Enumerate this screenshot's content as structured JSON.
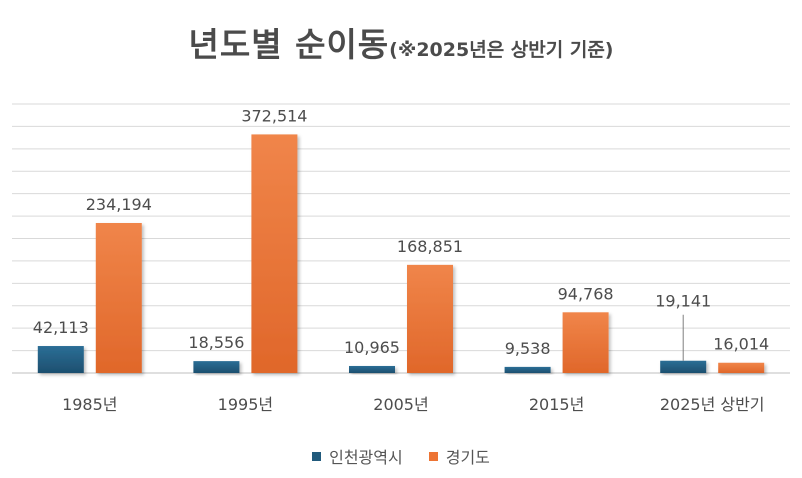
{
  "chart_data": {
    "type": "bar",
    "title": "년도별 순이동",
    "subtitle": "(※2025년은 상반기 기준)",
    "categories": [
      "1985년",
      "1995년",
      "2005년",
      "2015년",
      "2025년 상반기"
    ],
    "series": [
      {
        "name": "인천광역시",
        "values": [
          42113,
          18556,
          10965,
          9538,
          19141
        ],
        "labels": [
          "42,113",
          "18,556",
          "10,965",
          "9,538",
          "19,141"
        ],
        "color": "#215a7c"
      },
      {
        "name": "경기도",
        "values": [
          234194,
          372514,
          168851,
          94768,
          16014
        ],
        "labels": [
          "234,194",
          "372,514",
          "168,851",
          "94,768",
          "16,014"
        ],
        "color": "#ed7434"
      }
    ],
    "ylim": [
      0,
      420000
    ],
    "grid": true,
    "legend": "bottom"
  }
}
